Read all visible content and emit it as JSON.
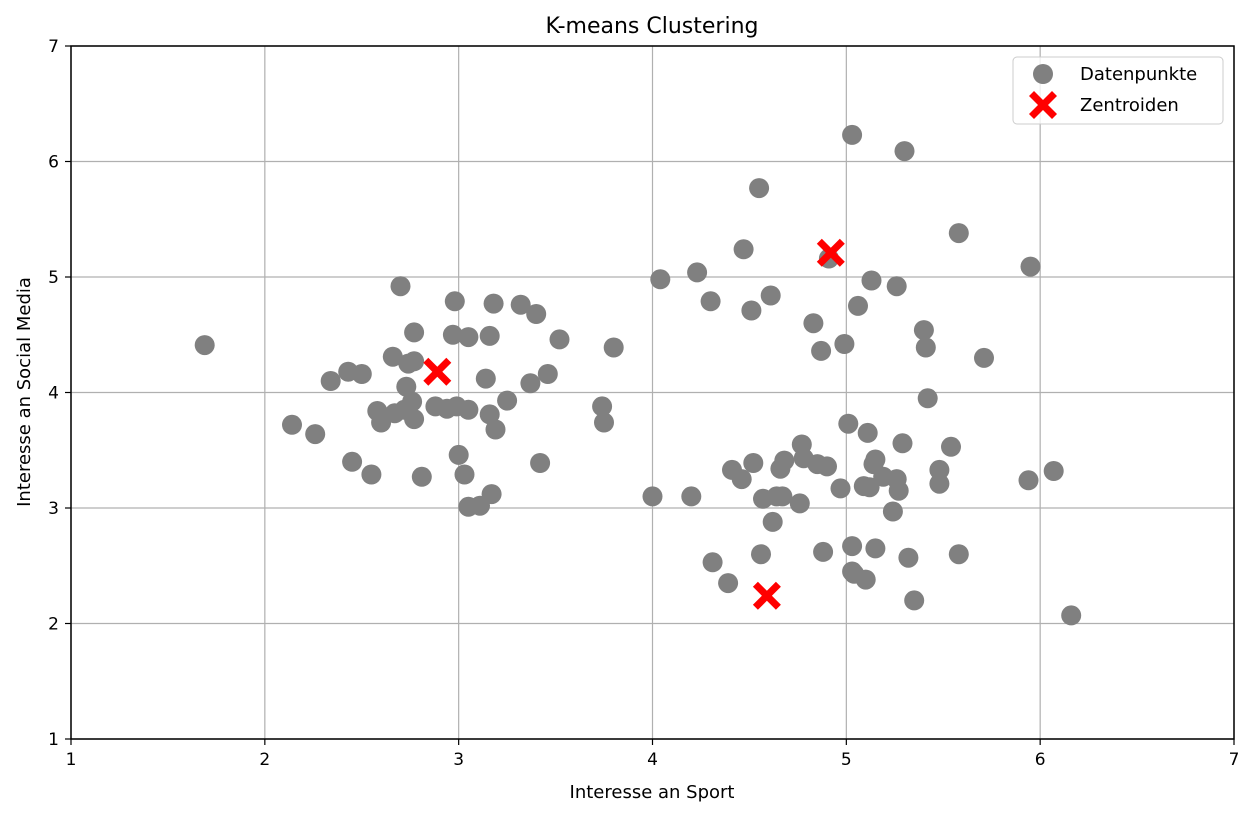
{
  "chart_data": {
    "type": "scatter",
    "title": "K-means Clustering",
    "xlabel": "Interesse an Sport",
    "ylabel": "Interesse an Social Media",
    "xlim": [
      1,
      7
    ],
    "ylim": [
      1,
      7
    ],
    "xticks": [
      "1",
      "2",
      "3",
      "4",
      "5",
      "6",
      "7"
    ],
    "yticks": [
      "1",
      "2",
      "3",
      "4",
      "5",
      "6",
      "7"
    ],
    "grid": true,
    "legend_position": "top-right",
    "series": [
      {
        "name": "Datenpunkte",
        "color": "#808080",
        "marker": "circle",
        "points": [
          [
            1.69,
            4.41
          ],
          [
            2.14,
            3.72
          ],
          [
            2.26,
            3.64
          ],
          [
            2.34,
            4.1
          ],
          [
            2.43,
            4.18
          ],
          [
            2.5,
            4.16
          ],
          [
            2.45,
            3.4
          ],
          [
            2.55,
            3.29
          ],
          [
            2.58,
            3.84
          ],
          [
            2.6,
            3.74
          ],
          [
            2.66,
            4.31
          ],
          [
            2.67,
            3.82
          ],
          [
            2.7,
            4.92
          ],
          [
            2.72,
            3.85
          ],
          [
            2.73,
            4.05
          ],
          [
            2.74,
            4.25
          ],
          [
            2.76,
            3.92
          ],
          [
            2.77,
            4.52
          ],
          [
            2.77,
            4.27
          ],
          [
            2.77,
            3.77
          ],
          [
            2.81,
            3.27
          ],
          [
            2.88,
            3.88
          ],
          [
            2.94,
            3.86
          ],
          [
            2.97,
            4.5
          ],
          [
            2.98,
            4.79
          ],
          [
            2.99,
            3.88
          ],
          [
            3.0,
            3.46
          ],
          [
            3.03,
            3.29
          ],
          [
            3.05,
            3.85
          ],
          [
            3.05,
            4.48
          ],
          [
            3.05,
            3.01
          ],
          [
            3.11,
            3.02
          ],
          [
            3.14,
            4.12
          ],
          [
            3.16,
            3.81
          ],
          [
            3.16,
            4.49
          ],
          [
            3.17,
            3.12
          ],
          [
            3.18,
            4.77
          ],
          [
            3.19,
            3.68
          ],
          [
            3.25,
            3.93
          ],
          [
            3.32,
            4.76
          ],
          [
            3.37,
            4.08
          ],
          [
            3.4,
            4.68
          ],
          [
            3.42,
            3.39
          ],
          [
            3.46,
            4.16
          ],
          [
            3.52,
            4.46
          ],
          [
            3.74,
            3.88
          ],
          [
            3.75,
            3.74
          ],
          [
            3.8,
            4.39
          ],
          [
            4.0,
            3.1
          ],
          [
            4.04,
            4.98
          ],
          [
            4.2,
            3.1
          ],
          [
            4.23,
            5.04
          ],
          [
            4.3,
            4.79
          ],
          [
            4.31,
            2.53
          ],
          [
            4.39,
            2.35
          ],
          [
            4.41,
            3.33
          ],
          [
            4.46,
            3.25
          ],
          [
            4.47,
            5.24
          ],
          [
            4.51,
            4.71
          ],
          [
            4.52,
            3.39
          ],
          [
            4.55,
            5.77
          ],
          [
            4.56,
            2.6
          ],
          [
            4.57,
            3.08
          ],
          [
            4.61,
            4.84
          ],
          [
            4.62,
            2.88
          ],
          [
            4.64,
            3.1
          ],
          [
            4.66,
            3.34
          ],
          [
            4.67,
            3.1
          ],
          [
            4.68,
            3.41
          ],
          [
            4.76,
            3.04
          ],
          [
            4.77,
            3.55
          ],
          [
            4.78,
            3.43
          ],
          [
            4.83,
            4.6
          ],
          [
            4.85,
            3.38
          ],
          [
            4.87,
            4.36
          ],
          [
            4.88,
            2.62
          ],
          [
            4.9,
            3.36
          ],
          [
            4.91,
            5.16
          ],
          [
            4.97,
            3.17
          ],
          [
            4.99,
            4.42
          ],
          [
            5.01,
            3.73
          ],
          [
            5.03,
            6.23
          ],
          [
            5.03,
            2.67
          ],
          [
            5.03,
            2.45
          ],
          [
            5.04,
            2.43
          ],
          [
            5.06,
            4.75
          ],
          [
            5.09,
            3.19
          ],
          [
            5.1,
            2.38
          ],
          [
            5.11,
            3.65
          ],
          [
            5.12,
            3.18
          ],
          [
            5.13,
            4.97
          ],
          [
            5.14,
            3.38
          ],
          [
            5.15,
            3.42
          ],
          [
            5.15,
            2.65
          ],
          [
            5.19,
            3.27
          ],
          [
            5.24,
            2.97
          ],
          [
            5.26,
            4.92
          ],
          [
            5.26,
            3.25
          ],
          [
            5.27,
            3.15
          ],
          [
            5.29,
            3.56
          ],
          [
            5.3,
            6.09
          ],
          [
            5.32,
            2.57
          ],
          [
            5.35,
            2.2
          ],
          [
            5.4,
            4.54
          ],
          [
            5.41,
            4.39
          ],
          [
            5.42,
            3.95
          ],
          [
            5.48,
            3.33
          ],
          [
            5.48,
            3.21
          ],
          [
            5.54,
            3.53
          ],
          [
            5.58,
            5.38
          ],
          [
            5.58,
            2.6
          ],
          [
            5.71,
            4.3
          ],
          [
            5.94,
            3.24
          ],
          [
            5.95,
            5.09
          ],
          [
            6.07,
            3.32
          ],
          [
            6.16,
            2.07
          ]
        ]
      },
      {
        "name": "Zentroiden",
        "color": "#ff0000",
        "marker": "X",
        "points": [
          [
            2.89,
            4.18
          ],
          [
            4.92,
            5.21
          ],
          [
            4.59,
            2.24
          ]
        ]
      }
    ]
  }
}
